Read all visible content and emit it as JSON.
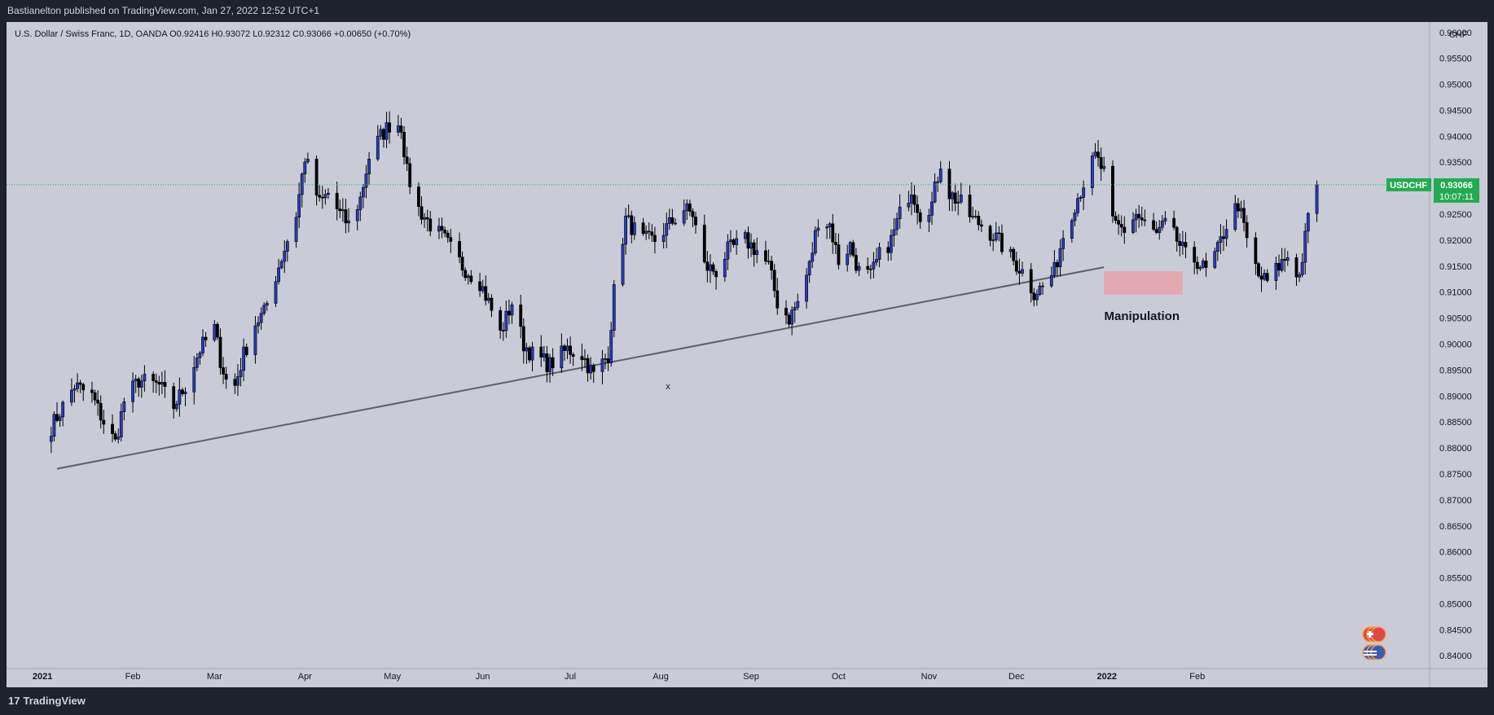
{
  "header": {
    "published_by": "Bastianelton published on TradingView.com, Jan 27, 2022 12:52 UTC+1"
  },
  "legend": {
    "text": "U.S. Dollar / Swiss Franc, 1D, OANDA  O0.92416  H0.93072  L0.92312  C0.93066  +0.00650 (+0.70%)"
  },
  "footer": {
    "logo_text": "TradingView",
    "logo_mark": "17"
  },
  "colors": {
    "bull": "#2a3bb8",
    "bear": "#000000",
    "chart_bg": "#c9ccd7",
    "price_label": "#22ab52",
    "zone": "#e8a0a8",
    "trendline": "#5d606b"
  },
  "chart_data": {
    "type": "candlestick",
    "symbol": "USDCHF",
    "currency": "CHF",
    "ylim": [
      0.838,
      0.962
    ],
    "y_ticks": [
      "0.96000",
      "0.95500",
      "0.95000",
      "0.94500",
      "0.94000",
      "0.93500",
      "0.93000",
      "0.92500",
      "0.92000",
      "0.91500",
      "0.91000",
      "0.90500",
      "0.90000",
      "0.89500",
      "0.89000",
      "0.88500",
      "0.88000",
      "0.87500",
      "0.87000",
      "0.86500",
      "0.86000",
      "0.85500",
      "0.85000",
      "0.84500",
      "0.84000"
    ],
    "x_ticks": [
      "2021",
      "Feb",
      "Mar",
      "Apr",
      "May",
      "Jun",
      "Jul",
      "Aug",
      "Sep",
      "Oct",
      "Nov",
      "Dec",
      "2022",
      "Feb"
    ],
    "last_price": {
      "symbol_label": "USDCHF",
      "value": "0.93066",
      "countdown": "10:07:11",
      "price": 0.93066
    },
    "annotations": [
      {
        "type": "text",
        "text": "Manipulation"
      },
      {
        "type": "marker",
        "text": "x"
      }
    ],
    "trendline": {
      "from": [
        "2021-01-06",
        0.876
      ],
      "to": [
        "2021-12-31",
        0.9148
      ]
    },
    "zone": {
      "from": "2021-12-31",
      "to": "2022-01-27",
      "top": 0.914,
      "bottom": 0.9095
    },
    "anchors": [
      [
        "2021-01-04",
        0.884
      ],
      [
        "2021-01-12",
        0.892
      ],
      [
        "2021-01-18",
        0.89
      ],
      [
        "2021-01-22",
        0.885
      ],
      [
        "2021-01-26",
        0.881
      ],
      [
        "2021-01-29",
        0.889
      ],
      [
        "2021-02-03",
        0.893
      ],
      [
        "2021-02-10",
        0.892
      ],
      [
        "2021-02-15",
        0.888
      ],
      [
        "2021-02-19",
        0.892
      ],
      [
        "2021-02-24",
        0.899
      ],
      [
        "2021-03-01",
        0.903
      ],
      [
        "2021-03-03",
        0.897
      ],
      [
        "2021-03-05",
        0.893
      ],
      [
        "2021-03-08",
        0.892
      ],
      [
        "2021-03-11",
        0.898
      ],
      [
        "2021-03-15",
        0.904
      ],
      [
        "2021-03-18",
        0.906
      ],
      [
        "2021-03-23",
        0.915
      ],
      [
        "2021-03-29",
        0.925
      ],
      [
        "2021-04-01",
        0.936
      ],
      [
        "2021-04-06",
        0.927
      ],
      [
        "2021-04-09",
        0.929
      ],
      [
        "2021-04-13",
        0.925
      ],
      [
        "2021-04-16",
        0.923
      ],
      [
        "2021-04-20",
        0.928
      ],
      [
        "2021-04-23",
        0.936
      ],
      [
        "2021-04-27",
        0.94
      ],
      [
        "2021-05-01",
        0.943
      ],
      [
        "2021-05-04",
        0.942
      ],
      [
        "2021-05-06",
        0.933
      ],
      [
        "2021-05-10",
        0.926
      ],
      [
        "2021-05-14",
        0.923
      ],
      [
        "2021-05-19",
        0.92
      ],
      [
        "2021-05-25",
        0.915
      ],
      [
        "2021-05-31",
        0.912
      ],
      [
        "2021-06-03",
        0.908
      ],
      [
        "2021-06-07",
        0.902
      ],
      [
        "2021-06-11",
        0.908
      ],
      [
        "2021-06-15",
        0.9
      ],
      [
        "2021-06-18",
        0.898
      ],
      [
        "2021-06-24",
        0.896
      ],
      [
        "2021-06-30",
        0.899
      ],
      [
        "2021-07-05",
        0.898
      ],
      [
        "2021-07-09",
        0.894
      ],
      [
        "2021-07-14",
        0.898
      ],
      [
        "2021-07-16",
        0.91
      ],
      [
        "2021-07-20",
        0.924
      ],
      [
        "2021-07-26",
        0.92
      ],
      [
        "2021-07-30",
        0.92
      ],
      [
        "2021-08-04",
        0.923
      ],
      [
        "2021-08-09",
        0.926
      ],
      [
        "2021-08-12",
        0.925
      ],
      [
        "2021-08-16",
        0.915
      ],
      [
        "2021-08-20",
        0.914
      ],
      [
        "2021-08-24",
        0.918
      ],
      [
        "2021-08-30",
        0.92
      ],
      [
        "2021-09-03",
        0.918
      ],
      [
        "2021-09-07",
        0.915
      ],
      [
        "2021-09-10",
        0.908
      ],
      [
        "2021-09-14",
        0.905
      ],
      [
        "2021-09-17",
        0.908
      ],
      [
        "2021-09-21",
        0.915
      ],
      [
        "2021-09-24",
        0.924
      ],
      [
        "2021-09-28",
        0.923
      ],
      [
        "2021-10-01",
        0.916
      ],
      [
        "2021-10-05",
        0.919
      ],
      [
        "2021-10-08",
        0.914
      ],
      [
        "2021-10-12",
        0.913
      ],
      [
        "2021-10-15",
        0.917
      ],
      [
        "2021-10-19",
        0.92
      ],
      [
        "2021-10-22",
        0.925
      ],
      [
        "2021-10-26",
        0.93
      ],
      [
        "2021-10-29",
        0.925
      ],
      [
        "2021-11-02",
        0.927
      ],
      [
        "2021-11-05",
        0.935
      ],
      [
        "2021-11-08",
        0.929
      ],
      [
        "2021-11-12",
        0.927
      ],
      [
        "2021-11-16",
        0.924
      ],
      [
        "2021-11-19",
        0.923
      ],
      [
        "2021-11-23",
        0.921
      ],
      [
        "2021-11-26",
        0.919
      ],
      [
        "2021-11-30",
        0.916
      ],
      [
        "2021-12-03",
        0.914
      ],
      [
        "2021-12-07",
        0.91
      ],
      [
        "2021-12-10",
        0.911
      ],
      [
        "2021-12-14",
        0.914
      ],
      [
        "2021-12-17",
        0.921
      ],
      [
        "2021-12-21",
        0.927
      ],
      [
        "2021-12-24",
        0.931
      ],
      [
        "2021-12-28",
        0.936
      ],
      [
        "2021-12-31",
        0.933
      ],
      [
        "2022-01-03",
        0.923
      ],
      [
        "2022-01-07",
        0.922
      ],
      [
        "2022-01-11",
        0.925
      ],
      [
        "2022-01-14",
        0.923
      ],
      [
        "2022-01-18",
        0.921
      ],
      [
        "2022-01-21",
        0.923
      ],
      [
        "2022-01-25",
        0.92
      ],
      [
        "2022-01-28",
        0.917
      ],
      [
        "2022-02-01",
        0.916
      ],
      [
        "2022-02-04",
        0.914
      ],
      [
        "2022-02-08",
        0.918
      ],
      [
        "2022-02-11",
        0.923
      ],
      [
        "2022-02-15",
        0.927
      ],
      [
        "2022-02-18",
        0.92
      ],
      [
        "2022-02-22",
        0.913
      ],
      [
        "2022-02-25",
        0.912
      ],
      [
        "2022-03-01",
        0.915
      ],
      [
        "2022-03-04",
        0.917
      ],
      [
        "2022-03-08",
        0.913
      ],
      [
        "2022-03-11",
        0.924
      ],
      [
        "2022-03-14",
        0.9307
      ]
    ]
  }
}
